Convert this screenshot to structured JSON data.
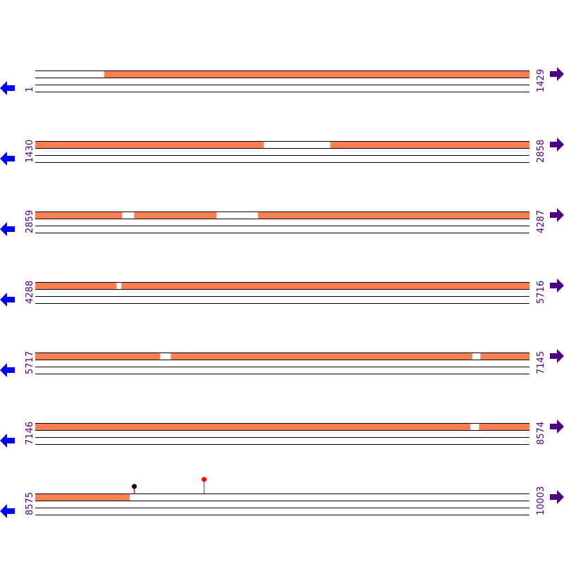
{
  "colors": {
    "coverage": "#ff7f50",
    "left_arrow": "#0000ff",
    "right_arrow": "#4b0082",
    "label": "#4b0082",
    "marker_red": "#ff0000",
    "marker_black": "#000000",
    "stem": "#ff0000"
  },
  "icons": {
    "left": "arrow-left-icon",
    "right": "arrow-right-icon"
  },
  "rows": [
    {
      "start": "1",
      "end": "1429",
      "s": 1,
      "e": 1429,
      "gaps": [
        [
          1,
          200
        ]
      ]
    },
    {
      "start": "1430",
      "end": "2858",
      "s": 1430,
      "e": 2858,
      "gaps": [
        [
          2091,
          2283
        ]
      ]
    },
    {
      "start": "2859",
      "end": "4287",
      "s": 2859,
      "e": 4287,
      "gaps": [
        [
          3110,
          3145
        ],
        [
          3383,
          3503
        ]
      ]
    },
    {
      "start": "4288",
      "end": "5716",
      "s": 4288,
      "e": 5716,
      "gaps": [
        [
          4523,
          4537
        ]
      ]
    },
    {
      "start": "5717",
      "end": "7145",
      "s": 5717,
      "e": 7145,
      "gaps": [
        [
          6078,
          6109
        ],
        [
          6981,
          7004
        ]
      ]
    },
    {
      "start": "7146",
      "end": "8574",
      "s": 7146,
      "e": 8574,
      "gaps": [
        [
          8404,
          8429
        ]
      ]
    },
    {
      "start": "8575",
      "end": "10003",
      "s": 8575,
      "e": 10003,
      "gaps": [
        [
          8848,
          10003
        ]
      ]
    }
  ],
  "markers": [
    {
      "position": 8861,
      "color": "#000000",
      "level": 1
    },
    {
      "position": 9062,
      "color": "#ff0000",
      "level": 2
    }
  ]
}
